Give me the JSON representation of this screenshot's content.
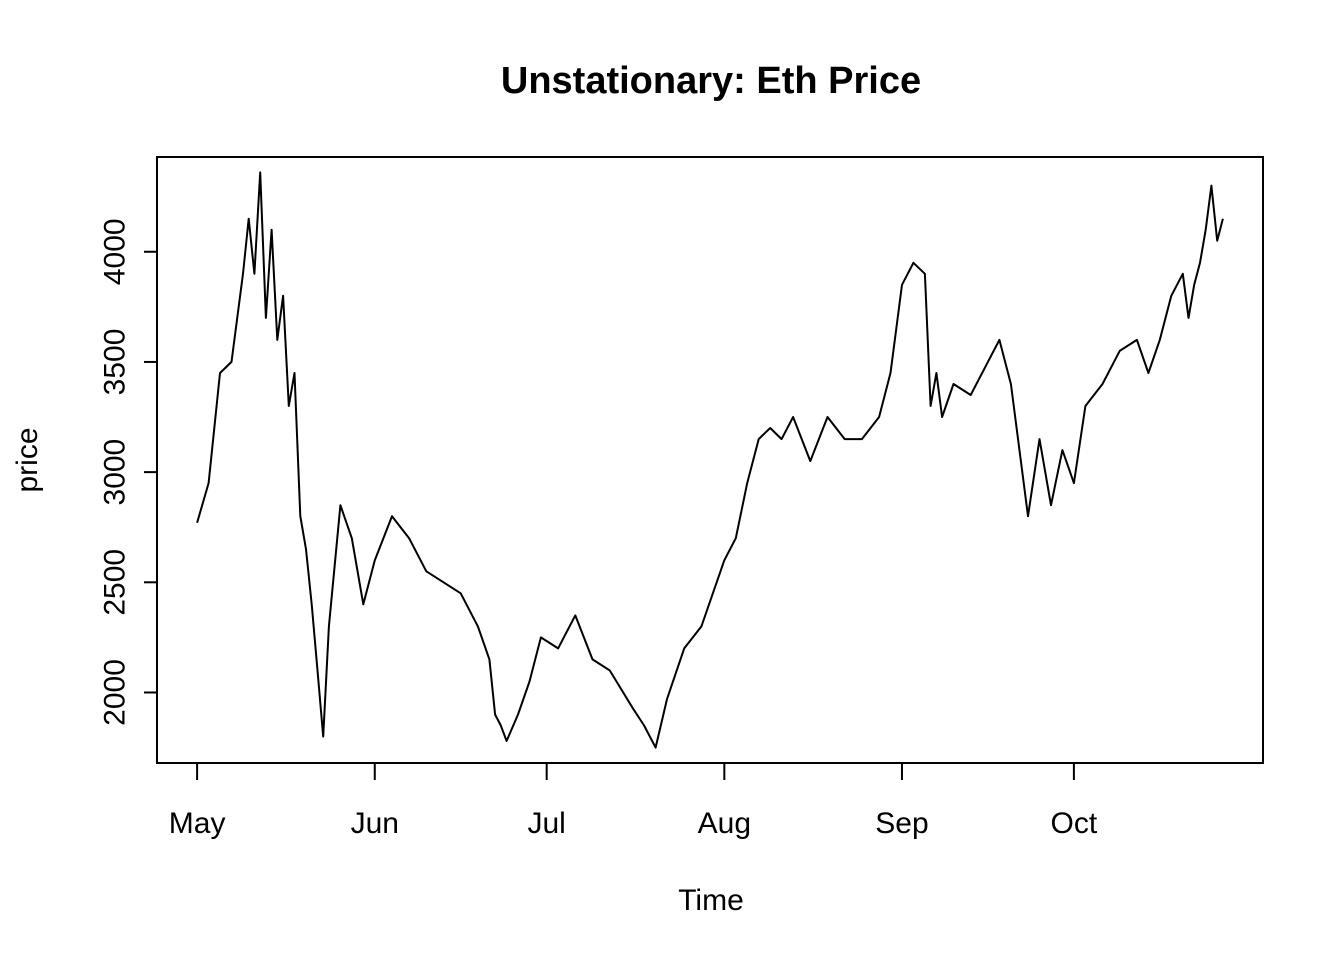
{
  "chart_data": {
    "type": "line",
    "title": "Unstationary: Eth Price",
    "xlabel": "Time",
    "ylabel": "price",
    "x_tick_labels": [
      "May",
      "Jun",
      "Jul",
      "Aug",
      "Sep",
      "Oct"
    ],
    "x_ticks": [
      "2021-05-01",
      "2021-06-01",
      "2021-07-01",
      "2021-08-01",
      "2021-09-01",
      "2021-10-01"
    ],
    "xlim": [
      "2021-04-24",
      "2021-11-03"
    ],
    "y_ticks": [
      2000,
      2500,
      3000,
      3500,
      4000
    ],
    "ylim": [
      1680,
      4430
    ],
    "grid": false,
    "legend": "none",
    "line_color": "#000000",
    "series": [
      {
        "x": [
          "2021-05-01",
          "2021-05-03",
          "2021-05-05",
          "2021-05-07",
          "2021-05-09",
          "2021-05-10",
          "2021-05-11",
          "2021-05-12",
          "2021-05-13",
          "2021-05-14",
          "2021-05-15",
          "2021-05-16",
          "2021-05-17",
          "2021-05-18",
          "2021-05-19",
          "2021-05-20",
          "2021-05-21",
          "2021-05-22",
          "2021-05-23",
          "2021-05-24",
          "2021-05-26",
          "2021-05-28",
          "2021-05-30",
          "2021-06-01",
          "2021-06-04",
          "2021-06-07",
          "2021-06-10",
          "2021-06-13",
          "2021-06-16",
          "2021-06-19",
          "2021-06-21",
          "2021-06-22",
          "2021-06-23",
          "2021-06-24",
          "2021-06-26",
          "2021-06-28",
          "2021-06-30",
          "2021-07-03",
          "2021-07-06",
          "2021-07-09",
          "2021-07-12",
          "2021-07-16",
          "2021-07-18",
          "2021-07-20",
          "2021-07-22",
          "2021-07-25",
          "2021-07-28",
          "2021-08-01",
          "2021-08-03",
          "2021-08-05",
          "2021-08-07",
          "2021-08-09",
          "2021-08-11",
          "2021-08-13",
          "2021-08-16",
          "2021-08-19",
          "2021-08-22",
          "2021-08-25",
          "2021-08-28",
          "2021-08-30",
          "2021-09-01",
          "2021-09-03",
          "2021-09-05",
          "2021-09-06",
          "2021-09-07",
          "2021-09-08",
          "2021-09-10",
          "2021-09-13",
          "2021-09-16",
          "2021-09-18",
          "2021-09-20",
          "2021-09-21",
          "2021-09-23",
          "2021-09-25",
          "2021-09-27",
          "2021-09-29",
          "2021-10-01",
          "2021-10-03",
          "2021-10-06",
          "2021-10-09",
          "2021-10-12",
          "2021-10-14",
          "2021-10-16",
          "2021-10-18",
          "2021-10-20",
          "2021-10-21",
          "2021-10-22",
          "2021-10-23",
          "2021-10-24",
          "2021-10-25",
          "2021-10-26",
          "2021-10-27"
        ],
        "values": [
          2770,
          2950,
          3450,
          3500,
          3900,
          4150,
          3900,
          4360,
          3700,
          4100,
          3600,
          3800,
          3300,
          3450,
          2800,
          2650,
          2400,
          2100,
          1800,
          2300,
          2850,
          2700,
          2400,
          2600,
          2800,
          2700,
          2550,
          2500,
          2450,
          2300,
          2150,
          1900,
          1850,
          1780,
          1900,
          2050,
          2250,
          2200,
          2350,
          2150,
          2100,
          1930,
          1850,
          1750,
          1970,
          2200,
          2300,
          2600,
          2700,
          2950,
          3150,
          3200,
          3150,
          3250,
          3050,
          3250,
          3150,
          3150,
          3250,
          3450,
          3850,
          3950,
          3900,
          3300,
          3450,
          3250,
          3400,
          3350,
          3500,
          3600,
          3400,
          3200,
          2800,
          3150,
          2850,
          3100,
          2950,
          3300,
          3400,
          3550,
          3600,
          3450,
          3600,
          3800,
          3900,
          3700,
          3850,
          3950,
          4100,
          4300,
          4050,
          4150
        ]
      }
    ]
  }
}
